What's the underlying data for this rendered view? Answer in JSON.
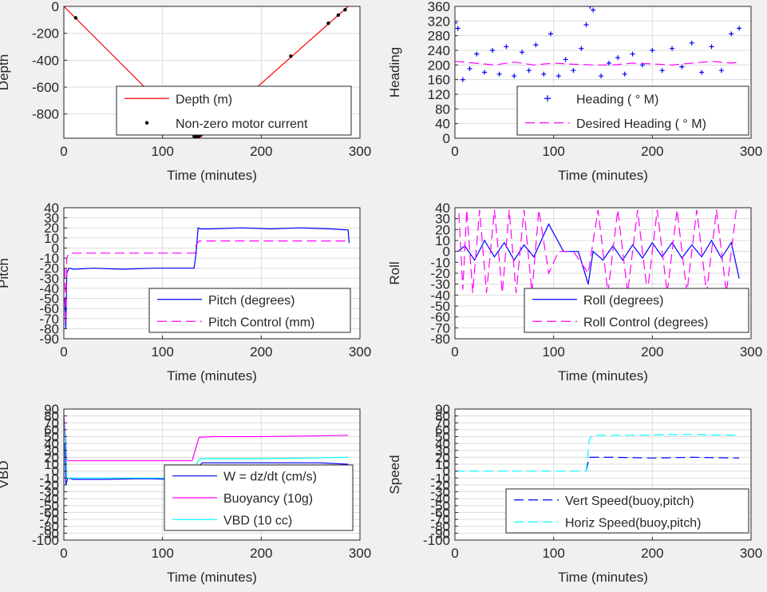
{
  "chart_data": [
    {
      "type": "line",
      "xlabel": "Time (minutes)",
      "ylabel": "Depth",
      "xlim": [
        0,
        300
      ],
      "ylim": [
        -980,
        0
      ],
      "xticks": [
        0,
        100,
        200,
        300
      ],
      "yticks": [
        0,
        -200,
        -400,
        -600,
        -800
      ],
      "grid": true,
      "legend_position": "lower-right",
      "series": [
        {
          "name": "Depth (m)",
          "color": "#ff0000",
          "style": "solid",
          "x": [
            0,
            133,
            139,
            288
          ],
          "y": [
            0,
            -975,
            -970,
            0
          ]
        },
        {
          "name": "Non-zero motor current",
          "color": "#000000",
          "style": "dot",
          "x": [
            12,
            132,
            133,
            135,
            137,
            139,
            230,
            268,
            278,
            285
          ],
          "y": [
            -85,
            -965,
            -970,
            -970,
            -965,
            -950,
            -370,
            -125,
            -65,
            -25
          ]
        }
      ]
    },
    {
      "type": "line",
      "xlabel": "Time (minutes)",
      "ylabel": "Heading",
      "xlim": [
        0,
        300
      ],
      "ylim": [
        0,
        360
      ],
      "xticks": [
        0,
        100,
        200,
        300
      ],
      "yticks": [
        0,
        40,
        80,
        120,
        160,
        200,
        240,
        280,
        320,
        360
      ],
      "grid": true,
      "legend_position": "lower-right",
      "series": [
        {
          "name": "Heading (  ° M)",
          "color": "#0000ff",
          "style": "plus",
          "x": [
            0,
            3,
            8,
            15,
            22,
            30,
            38,
            45,
            52,
            60,
            68,
            75,
            82,
            90,
            97,
            105,
            112,
            120,
            128,
            133,
            137,
            140,
            148,
            156,
            165,
            172,
            180,
            190,
            200,
            210,
            220,
            230,
            240,
            250,
            260,
            270,
            280,
            288
          ],
          "y": [
            315,
            300,
            160,
            190,
            230,
            180,
            240,
            175,
            250,
            170,
            235,
            185,
            255,
            175,
            285,
            170,
            215,
            185,
            245,
            310,
            360,
            350,
            170,
            205,
            220,
            175,
            230,
            200,
            240,
            185,
            245,
            195,
            260,
            180,
            250,
            185,
            285,
            300
          ]
        },
        {
          "name": "Desired Heading (    ° M)",
          "color": "#ff00ff",
          "style": "dash",
          "x": [
            0,
            20,
            40,
            60,
            80,
            100,
            120,
            140,
            160,
            180,
            200,
            220,
            240,
            260,
            280,
            288
          ],
          "y": [
            210,
            205,
            200,
            208,
            200,
            205,
            202,
            200,
            200,
            205,
            203,
            200,
            205,
            210,
            205,
            208
          ]
        }
      ]
    },
    {
      "type": "line",
      "xlabel": "Time (minutes)",
      "ylabel": "Pitch",
      "xlim": [
        0,
        300
      ],
      "ylim": [
        -90,
        40
      ],
      "xticks": [
        0,
        100,
        200,
        300
      ],
      "yticks": [
        40,
        30,
        20,
        10,
        0,
        -10,
        -20,
        -30,
        -40,
        -50,
        -60,
        -70,
        -80,
        -90
      ],
      "grid": true,
      "legend_position": "lower-right",
      "series": [
        {
          "name": "Pitch (degrees)",
          "color": "#0000ff",
          "style": "solid",
          "x": [
            1,
            2,
            3,
            5,
            10,
            30,
            60,
            90,
            120,
            132,
            134,
            136,
            138,
            150,
            180,
            210,
            240,
            270,
            288,
            289
          ],
          "y": [
            -50,
            -80,
            -25,
            -20,
            -21,
            -20,
            -21,
            -20,
            -20,
            -20,
            -5,
            20,
            19,
            19,
            20,
            19,
            20,
            19,
            18,
            5
          ]
        },
        {
          "name": "Pitch Control (mm)",
          "color": "#ff00ff",
          "style": "dash",
          "x": [
            1,
            2,
            3,
            5,
            50,
            100,
            133,
            134,
            137,
            200,
            288
          ],
          "y": [
            -20,
            -75,
            -10,
            -5,
            -5,
            -5,
            -5,
            3,
            7,
            7,
            7
          ]
        }
      ]
    },
    {
      "type": "line",
      "xlabel": "Time (minutes)",
      "ylabel": "Roll",
      "xlim": [
        0,
        300
      ],
      "ylim": [
        -80,
        40
      ],
      "xticks": [
        0,
        100,
        200,
        300
      ],
      "yticks": [
        40,
        30,
        20,
        10,
        0,
        -10,
        -20,
        -30,
        -40,
        -50,
        -60,
        -70,
        -80
      ],
      "grid": true,
      "legend_position": "lower-right",
      "series": [
        {
          "name": "Roll (degrees)",
          "color": "#0000ff",
          "style": "solid",
          "x": [
            3,
            10,
            20,
            30,
            40,
            50,
            60,
            70,
            80,
            95,
            110,
            125,
            135,
            140,
            150,
            160,
            170,
            180,
            190,
            200,
            210,
            220,
            230,
            240,
            250,
            260,
            270,
            280,
            288
          ],
          "y": [
            0,
            5,
            -8,
            10,
            -5,
            8,
            -8,
            6,
            -5,
            25,
            0,
            0,
            -30,
            0,
            -8,
            5,
            -8,
            6,
            -6,
            8,
            -5,
            8,
            -6,
            6,
            -5,
            10,
            -6,
            8,
            -25
          ]
        },
        {
          "name": "Roll Control (degrees)",
          "color": "#ff00ff",
          "style": "dash",
          "x": [
            4,
            8,
            12,
            18,
            25,
            32,
            40,
            48,
            55,
            62,
            70,
            78,
            85,
            95,
            105,
            120,
            135,
            145,
            155,
            165,
            175,
            185,
            195,
            205,
            215,
            225,
            235,
            245,
            255,
            265,
            275,
            285
          ],
          "y": [
            35,
            -35,
            38,
            -38,
            38,
            -38,
            38,
            -38,
            38,
            -38,
            38,
            -38,
            38,
            -20,
            0,
            0,
            -20,
            38,
            -38,
            38,
            -38,
            38,
            -38,
            38,
            -38,
            38,
            -38,
            38,
            -38,
            38,
            -38,
            38
          ]
        }
      ]
    },
    {
      "type": "line",
      "xlabel": "Time (minutes)",
      "ylabel": "VBD",
      "xlim": [
        0,
        300
      ],
      "ylim": [
        -100,
        90
      ],
      "xticks": [
        0,
        100,
        200,
        300
      ],
      "yticks": [
        90,
        80,
        70,
        60,
        50,
        40,
        30,
        20,
        10,
        0,
        -10,
        -20,
        -30,
        -40,
        -50,
        -60,
        -70,
        -80,
        -90,
        -100
      ],
      "grid": true,
      "legend_position": "lower-right",
      "series": [
        {
          "name": "W = dz/dt (cm/s)",
          "color": "#0000ff",
          "style": "solid",
          "x": [
            1,
            2,
            4,
            10,
            40,
            80,
            120,
            132,
            136,
            140,
            180,
            220,
            260,
            288
          ],
          "y": [
            40,
            -20,
            -10,
            -12,
            -12,
            -11,
            -12,
            -11,
            5,
            12,
            12,
            12,
            12,
            10
          ]
        },
        {
          "name": "Buoyancy (10g)",
          "color": "#ff00ff",
          "style": "solid",
          "x": [
            0,
            2,
            3,
            5,
            130,
            133,
            137,
            150,
            200,
            250,
            288
          ],
          "y": [
            80,
            40,
            15,
            15,
            15,
            30,
            49,
            50,
            50,
            51,
            52
          ]
        },
        {
          "name": "VBD (10 cc)",
          "color": "#00ffff",
          "style": "solid",
          "x": [
            0,
            2,
            3,
            5,
            130,
            134,
            138,
            150,
            200,
            250,
            288
          ],
          "y": [
            70,
            30,
            -10,
            -10,
            -10,
            10,
            18,
            18,
            18,
            19,
            20
          ]
        }
      ]
    },
    {
      "type": "line",
      "xlabel": "Time (minutes)",
      "ylabel": "Speed",
      "xlim": [
        0,
        300
      ],
      "ylim": [
        -100,
        90
      ],
      "xticks": [
        0,
        100,
        200,
        300
      ],
      "yticks": [
        90,
        80,
        70,
        60,
        50,
        40,
        30,
        20,
        10,
        0,
        -10,
        -20,
        -30,
        -40,
        -50,
        -60,
        -70,
        -80,
        -90,
        -100
      ],
      "grid": true,
      "legend_position": "lower-right",
      "series": [
        {
          "name": "Vert Speed(buoy,pitch)",
          "color": "#0000ff",
          "style": "dash",
          "x": [
            133,
            136,
            139,
            160,
            200,
            240,
            288
          ],
          "y": [
            0,
            20,
            20,
            20,
            19,
            20,
            19
          ]
        },
        {
          "name": "Horiz Speed(buoy,pitch)",
          "color": "#00ffff",
          "style": "dash",
          "x": [
            0,
            60,
            120,
            133,
            136,
            139,
            180,
            230,
            288
          ],
          "y": [
            0,
            0,
            0,
            0,
            45,
            52,
            52,
            53,
            52
          ]
        }
      ]
    }
  ]
}
